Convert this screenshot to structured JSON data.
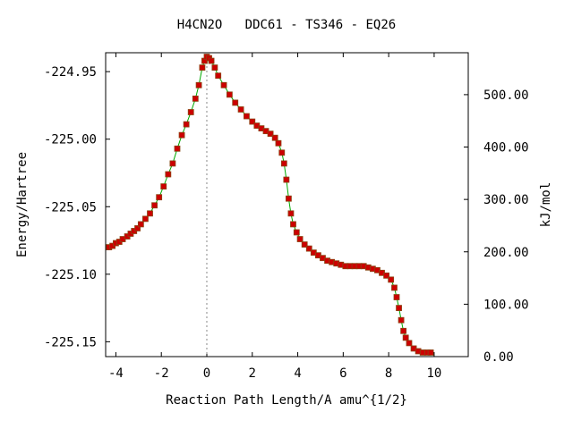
{
  "chart_data": {
    "type": "line",
    "title": "H4CN2O   DDC61 - TS346 - EQ26",
    "xlabel": "Reaction Path Length/A amu^{1/2}",
    "ylabel": "Energy/Hartree",
    "y2label": "kJ/mol",
    "xlim": [
      -4.45,
      11.5
    ],
    "ylim": [
      -225.161,
      -224.936
    ],
    "y2lim": [
      0,
      580
    ],
    "x_ticks": [
      -4,
      -2,
      0,
      2,
      4,
      6,
      8,
      10
    ],
    "x_tick_labels": [
      "-4",
      "-2",
      "0",
      "2",
      "4",
      "6",
      "8",
      "10"
    ],
    "y_ticks": [
      -224.95,
      -225.0,
      -225.05,
      -225.1,
      -225.15
    ],
    "y_tick_labels": [
      "-224.95",
      "-225.00",
      "-225.05",
      "-225.10",
      "-225.15"
    ],
    "y2_ticks": [
      0,
      100,
      200,
      300,
      400,
      500
    ],
    "y2_tick_labels": [
      "0.00",
      "100.00",
      "200.00",
      "300.00",
      "400.00",
      "500.00"
    ],
    "ts_x": 0,
    "line_color": "#00aa00",
    "marker_color": "#cc0000",
    "marker_edge": "#8b4513",
    "dash_color": "#888888",
    "grid": false,
    "series": [
      {
        "points": [
          [
            -4.3,
            -225.08
          ],
          [
            -4.15,
            -225.079
          ],
          [
            -4.0,
            -225.077
          ],
          [
            -3.85,
            -225.076
          ],
          [
            -3.7,
            -225.074
          ],
          [
            -3.5,
            -225.072
          ],
          [
            -3.35,
            -225.07
          ],
          [
            -3.2,
            -225.068
          ],
          [
            -3.05,
            -225.066
          ],
          [
            -2.9,
            -225.063
          ],
          [
            -2.7,
            -225.059
          ],
          [
            -2.5,
            -225.055
          ],
          [
            -2.3,
            -225.049
          ],
          [
            -2.1,
            -225.043
          ],
          [
            -1.9,
            -225.035
          ],
          [
            -1.7,
            -225.026
          ],
          [
            -1.5,
            -225.018
          ],
          [
            -1.3,
            -225.007
          ],
          [
            -1.1,
            -224.997
          ],
          [
            -0.9,
            -224.989
          ],
          [
            -0.7,
            -224.98
          ],
          [
            -0.5,
            -224.97
          ],
          [
            -0.35,
            -224.96
          ],
          [
            -0.2,
            -224.947
          ],
          [
            -0.1,
            -224.942
          ],
          [
            0.0,
            -224.939
          ],
          [
            0.1,
            -224.94
          ],
          [
            0.2,
            -224.942
          ],
          [
            0.35,
            -224.947
          ],
          [
            0.5,
            -224.953
          ],
          [
            0.75,
            -224.96
          ],
          [
            1.0,
            -224.967
          ],
          [
            1.25,
            -224.973
          ],
          [
            1.5,
            -224.978
          ],
          [
            1.75,
            -224.983
          ],
          [
            2.0,
            -224.987
          ],
          [
            2.2,
            -224.99
          ],
          [
            2.4,
            -224.992
          ],
          [
            2.6,
            -224.994
          ],
          [
            2.8,
            -224.996
          ],
          [
            3.0,
            -224.999
          ],
          [
            3.15,
            -225.003
          ],
          [
            3.3,
            -225.01
          ],
          [
            3.4,
            -225.018
          ],
          [
            3.5,
            -225.03
          ],
          [
            3.6,
            -225.044
          ],
          [
            3.7,
            -225.055
          ],
          [
            3.8,
            -225.063
          ],
          [
            3.95,
            -225.069
          ],
          [
            4.1,
            -225.074
          ],
          [
            4.3,
            -225.078
          ],
          [
            4.5,
            -225.081
          ],
          [
            4.7,
            -225.084
          ],
          [
            4.9,
            -225.086
          ],
          [
            5.1,
            -225.088
          ],
          [
            5.3,
            -225.09
          ],
          [
            5.5,
            -225.091
          ],
          [
            5.7,
            -225.092
          ],
          [
            5.9,
            -225.093
          ],
          [
            6.1,
            -225.094
          ],
          [
            6.3,
            -225.094
          ],
          [
            6.5,
            -225.094
          ],
          [
            6.7,
            -225.094
          ],
          [
            6.9,
            -225.094
          ],
          [
            7.1,
            -225.095
          ],
          [
            7.3,
            -225.096
          ],
          [
            7.5,
            -225.097
          ],
          [
            7.7,
            -225.099
          ],
          [
            7.9,
            -225.101
          ],
          [
            8.1,
            -225.104
          ],
          [
            8.25,
            -225.11
          ],
          [
            8.35,
            -225.117
          ],
          [
            8.45,
            -225.125
          ],
          [
            8.55,
            -225.134
          ],
          [
            8.65,
            -225.142
          ],
          [
            8.75,
            -225.147
          ],
          [
            8.9,
            -225.151
          ],
          [
            9.1,
            -225.155
          ],
          [
            9.3,
            -225.157
          ],
          [
            9.5,
            -225.158
          ],
          [
            9.7,
            -225.158
          ],
          [
            9.85,
            -225.158
          ]
        ]
      }
    ]
  }
}
